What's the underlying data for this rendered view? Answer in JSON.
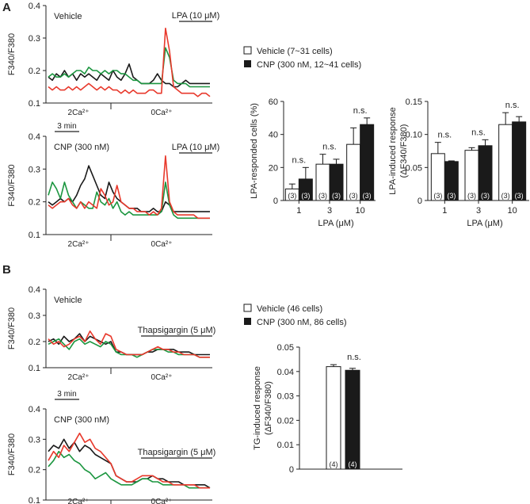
{
  "panel_labels": {
    "a": "A",
    "b": "B"
  },
  "styles": {
    "vehicle_color": "#1a1a1a",
    "red": "#e8392c",
    "green": "#1c9640",
    "black": "#1a1a1a",
    "bar_dark": "#1a1a1a",
    "bar_light": "#ffffff"
  },
  "chart_data": [
    {
      "id": "A-trace-vehicle",
      "type": "line",
      "title": "Vehicle",
      "ylabel": "F340/F380",
      "ylim": [
        0.1,
        0.4
      ],
      "yticks": [
        "0.1",
        "0.2",
        "0.3",
        "0.4"
      ],
      "stimulus": "LPA (10 μM)",
      "phases": [
        "2Ca²⁺",
        "0Ca²⁺"
      ],
      "series": [
        {
          "name": "black",
          "color": "#1a1a1a",
          "values": [
            0.18,
            0.17,
            0.19,
            0.18,
            0.2,
            0.18,
            0.19,
            0.17,
            0.19,
            0.18,
            0.19,
            0.18,
            0.17,
            0.19,
            0.18,
            0.17,
            0.2,
            0.18,
            0.17,
            0.19,
            0.22,
            0.18,
            0.17,
            0.16,
            0.16,
            0.16,
            0.17,
            0.19,
            0.17,
            0.16,
            0.16,
            0.15,
            0.15,
            0.16,
            0.17,
            0.16,
            0.16,
            0.16,
            0.16,
            0.16,
            0.16
          ]
        },
        {
          "name": "red",
          "color": "#e8392c",
          "values": [
            0.15,
            0.14,
            0.15,
            0.14,
            0.14,
            0.15,
            0.14,
            0.15,
            0.14,
            0.15,
            0.16,
            0.15,
            0.14,
            0.15,
            0.14,
            0.15,
            0.14,
            0.14,
            0.13,
            0.14,
            0.13,
            0.14,
            0.13,
            0.13,
            0.13,
            0.14,
            0.14,
            0.13,
            0.13,
            0.33,
            0.26,
            0.15,
            0.14,
            0.13,
            0.13,
            0.13,
            0.13,
            0.12,
            0.13,
            0.13,
            0.12
          ]
        },
        {
          "name": "green",
          "color": "#1c9640",
          "values": [
            0.18,
            0.19,
            0.18,
            0.18,
            0.19,
            0.18,
            0.19,
            0.2,
            0.2,
            0.19,
            0.21,
            0.2,
            0.2,
            0.19,
            0.2,
            0.19,
            0.2,
            0.2,
            0.19,
            0.19,
            0.18,
            0.17,
            0.17,
            0.16,
            0.16,
            0.16,
            0.16,
            0.16,
            0.16,
            0.27,
            0.24,
            0.17,
            0.16,
            0.16,
            0.16,
            0.15,
            0.15,
            0.15,
            0.15,
            0.15,
            0.15
          ]
        }
      ]
    },
    {
      "id": "A-trace-cnp",
      "type": "line",
      "title": "CNP (300 nM)",
      "ylabel": "F340/F380",
      "ylim": [
        0.1,
        0.4
      ],
      "yticks": [
        "0.1",
        "0.2",
        "0.3",
        "0.4"
      ],
      "stimulus": "LPA (10 μM)",
      "scale_bar": "3 min",
      "phases": [
        "2Ca²⁺",
        "0Ca²⁺"
      ],
      "series": [
        {
          "name": "black",
          "color": "#1a1a1a",
          "values": [
            0.2,
            0.19,
            0.2,
            0.21,
            0.2,
            0.21,
            0.2,
            0.22,
            0.25,
            0.27,
            0.31,
            0.28,
            0.25,
            0.22,
            0.21,
            0.26,
            0.23,
            0.21,
            0.2,
            0.19,
            0.18,
            0.18,
            0.18,
            0.17,
            0.17,
            0.17,
            0.18,
            0.17,
            0.17,
            0.2,
            0.19,
            0.17,
            0.17,
            0.17,
            0.17,
            0.17,
            0.17,
            0.17,
            0.17,
            0.17,
            0.17
          ]
        },
        {
          "name": "red",
          "color": "#e8392c",
          "values": [
            0.19,
            0.18,
            0.19,
            0.2,
            0.2,
            0.21,
            0.19,
            0.18,
            0.2,
            0.18,
            0.2,
            0.19,
            0.18,
            0.24,
            0.22,
            0.19,
            0.2,
            0.25,
            0.2,
            0.19,
            0.18,
            0.18,
            0.17,
            0.17,
            0.17,
            0.16,
            0.17,
            0.16,
            0.18,
            0.34,
            0.2,
            0.17,
            0.16,
            0.16,
            0.16,
            0.16,
            0.16,
            0.15,
            0.15,
            0.15,
            0.15
          ]
        },
        {
          "name": "green",
          "color": "#1c9640",
          "values": [
            0.22,
            0.26,
            0.24,
            0.21,
            0.26,
            0.22,
            0.2,
            0.18,
            0.2,
            0.19,
            0.18,
            0.18,
            0.23,
            0.2,
            0.19,
            0.21,
            0.18,
            0.2,
            0.17,
            0.16,
            0.17,
            0.16,
            0.16,
            0.16,
            0.16,
            0.16,
            0.16,
            0.16,
            0.17,
            0.26,
            0.19,
            0.16,
            0.15,
            0.15,
            0.15,
            0.15,
            0.15,
            0.15,
            0.15,
            0.15,
            0.15
          ]
        }
      ]
    },
    {
      "id": "A-bar-responded",
      "type": "bar",
      "ylabel": "LPA-responded cells (%)",
      "xlabel": "LPA (μM)",
      "ylim": [
        0,
        60
      ],
      "yticks": [
        "0",
        "20",
        "40",
        "60"
      ],
      "categories": [
        "1",
        "3",
        "10"
      ],
      "significance": [
        "n.s.",
        "n.s.",
        "n.s."
      ],
      "series": [
        {
          "name": "Vehicle",
          "values": [
            7,
            22,
            34
          ],
          "errors": [
            3,
            6,
            10
          ],
          "n": [
            "(3)",
            "(3)",
            "(3)"
          ]
        },
        {
          "name": "CNP",
          "values": [
            13,
            22,
            46
          ],
          "errors": [
            7,
            3,
            4
          ],
          "n": [
            "(3)",
            "(3)",
            "(3)"
          ]
        }
      ]
    },
    {
      "id": "A-bar-response",
      "type": "bar",
      "ylabel": "LPA-induced response",
      "ylabel2": "(ΔF340/F380)",
      "xlabel": "LPA (μM)",
      "ylim": [
        0,
        0.15
      ],
      "yticks": [
        "0",
        "0.05",
        "0.10",
        "0.15"
      ],
      "categories": [
        "1",
        "3",
        "10"
      ],
      "significance": [
        "n.s.",
        "n.s.",
        "n.s."
      ],
      "series": [
        {
          "name": "Vehicle",
          "values": [
            0.071,
            0.076,
            0.115
          ],
          "errors": [
            0.017,
            0.004,
            0.018
          ],
          "n": [
            "(3)",
            "(3)",
            "(3)"
          ]
        },
        {
          "name": "CNP",
          "values": [
            0.059,
            0.083,
            0.119
          ],
          "errors": [
            0.001,
            0.009,
            0.008
          ],
          "n": [
            "(3)",
            "(3)",
            "(3)"
          ]
        }
      ]
    },
    {
      "id": "B-trace-vehicle",
      "type": "line",
      "title": "Vehicle",
      "ylabel": "F340/F380",
      "ylim": [
        0.1,
        0.4
      ],
      "yticks": [
        "0.1",
        "0.2",
        "0.3",
        "0.4"
      ],
      "stimulus": "Thapsigargin (5 μM)",
      "phases": [
        "2Ca²⁺",
        "0Ca²⁺"
      ],
      "series": [
        {
          "name": "black",
          "color": "#1a1a1a",
          "values": [
            0.2,
            0.21,
            0.19,
            0.22,
            0.2,
            0.21,
            0.23,
            0.2,
            0.22,
            0.21,
            0.2,
            0.19,
            0.2,
            0.16,
            0.16,
            0.15,
            0.15,
            0.15,
            0.15,
            0.16,
            0.16,
            0.17,
            0.17,
            0.17,
            0.17,
            0.16,
            0.16,
            0.16,
            0.15,
            0.15,
            0.15,
            0.15
          ]
        },
        {
          "name": "red",
          "color": "#e8392c",
          "values": [
            0.21,
            0.19,
            0.2,
            0.18,
            0.19,
            0.21,
            0.22,
            0.2,
            0.24,
            0.21,
            0.19,
            0.23,
            0.22,
            0.17,
            0.16,
            0.15,
            0.15,
            0.15,
            0.15,
            0.16,
            0.17,
            0.18,
            0.17,
            0.17,
            0.16,
            0.16,
            0.15,
            0.15,
            0.15,
            0.14,
            0.14,
            0.14
          ]
        },
        {
          "name": "green",
          "color": "#1c9640",
          "values": [
            0.19,
            0.2,
            0.21,
            0.19,
            0.17,
            0.2,
            0.21,
            0.19,
            0.2,
            0.19,
            0.18,
            0.2,
            0.19,
            0.16,
            0.15,
            0.15,
            0.15,
            0.14,
            0.15,
            0.16,
            0.17,
            0.17,
            0.17,
            0.16,
            0.16,
            0.15,
            0.15,
            0.15,
            0.15,
            0.14,
            0.14,
            0.14
          ]
        }
      ]
    },
    {
      "id": "B-trace-cnp",
      "type": "line",
      "title": "CNP (300 nM)",
      "ylabel": "F340/F380",
      "ylim": [
        0.1,
        0.4
      ],
      "yticks": [
        "0.1",
        "0.2",
        "0.3",
        "0.4"
      ],
      "stimulus": "Thapsigargin (5 μM)",
      "scale_bar": "3 min",
      "phases": [
        "2Ca²⁺",
        "0Ca²⁺"
      ],
      "series": [
        {
          "name": "black",
          "color": "#1a1a1a",
          "values": [
            0.26,
            0.28,
            0.27,
            0.3,
            0.27,
            0.29,
            0.26,
            0.28,
            0.27,
            0.25,
            0.24,
            0.23,
            0.22,
            0.18,
            0.17,
            0.16,
            0.16,
            0.16,
            0.17,
            0.17,
            0.18,
            0.17,
            0.17,
            0.16,
            0.16,
            0.16,
            0.15,
            0.15,
            0.15,
            0.15,
            0.15,
            0.14
          ]
        },
        {
          "name": "red",
          "color": "#e8392c",
          "values": [
            0.23,
            0.26,
            0.24,
            0.28,
            0.26,
            0.29,
            0.32,
            0.29,
            0.3,
            0.27,
            0.26,
            0.24,
            0.22,
            0.18,
            0.17,
            0.16,
            0.16,
            0.17,
            0.18,
            0.18,
            0.18,
            0.17,
            0.16,
            0.16,
            0.15,
            0.15,
            0.15,
            0.15,
            0.15,
            0.14,
            0.14,
            0.14
          ]
        },
        {
          "name": "green",
          "color": "#1c9640",
          "values": [
            0.21,
            0.23,
            0.26,
            0.24,
            0.25,
            0.23,
            0.22,
            0.2,
            0.19,
            0.17,
            0.18,
            0.19,
            0.17,
            0.16,
            0.15,
            0.15,
            0.15,
            0.16,
            0.17,
            0.17,
            0.16,
            0.16,
            0.15,
            0.15,
            0.15,
            0.15,
            0.15,
            0.14,
            0.14,
            0.14,
            0.14,
            0.14
          ]
        }
      ]
    },
    {
      "id": "B-bar-tg",
      "type": "bar",
      "ylabel": "TG-induced response",
      "ylabel2": "(ΔF340/F380)",
      "ylim": [
        0,
        0.05
      ],
      "yticks": [
        "0",
        "0.01",
        "0.02",
        "0.03",
        "0.04",
        "0.05"
      ],
      "categories": [
        ""
      ],
      "significance": [
        "n.s."
      ],
      "series": [
        {
          "name": "Vehicle",
          "values": [
            0.042
          ],
          "errors": [
            0.0008
          ],
          "n": [
            "(4)"
          ]
        },
        {
          "name": "CNP",
          "values": [
            0.0405
          ],
          "errors": [
            0.0008
          ],
          "n": [
            "(4)"
          ]
        }
      ]
    }
  ],
  "legend_a": {
    "vehicle": "Vehicle (7~31 cells)",
    "cnp": "CNP (300 nM, 12~41 cells)"
  },
  "legend_b": {
    "vehicle": "Vehicle (46 cells)",
    "cnp": "CNP (300 nM, 86 cells)"
  }
}
